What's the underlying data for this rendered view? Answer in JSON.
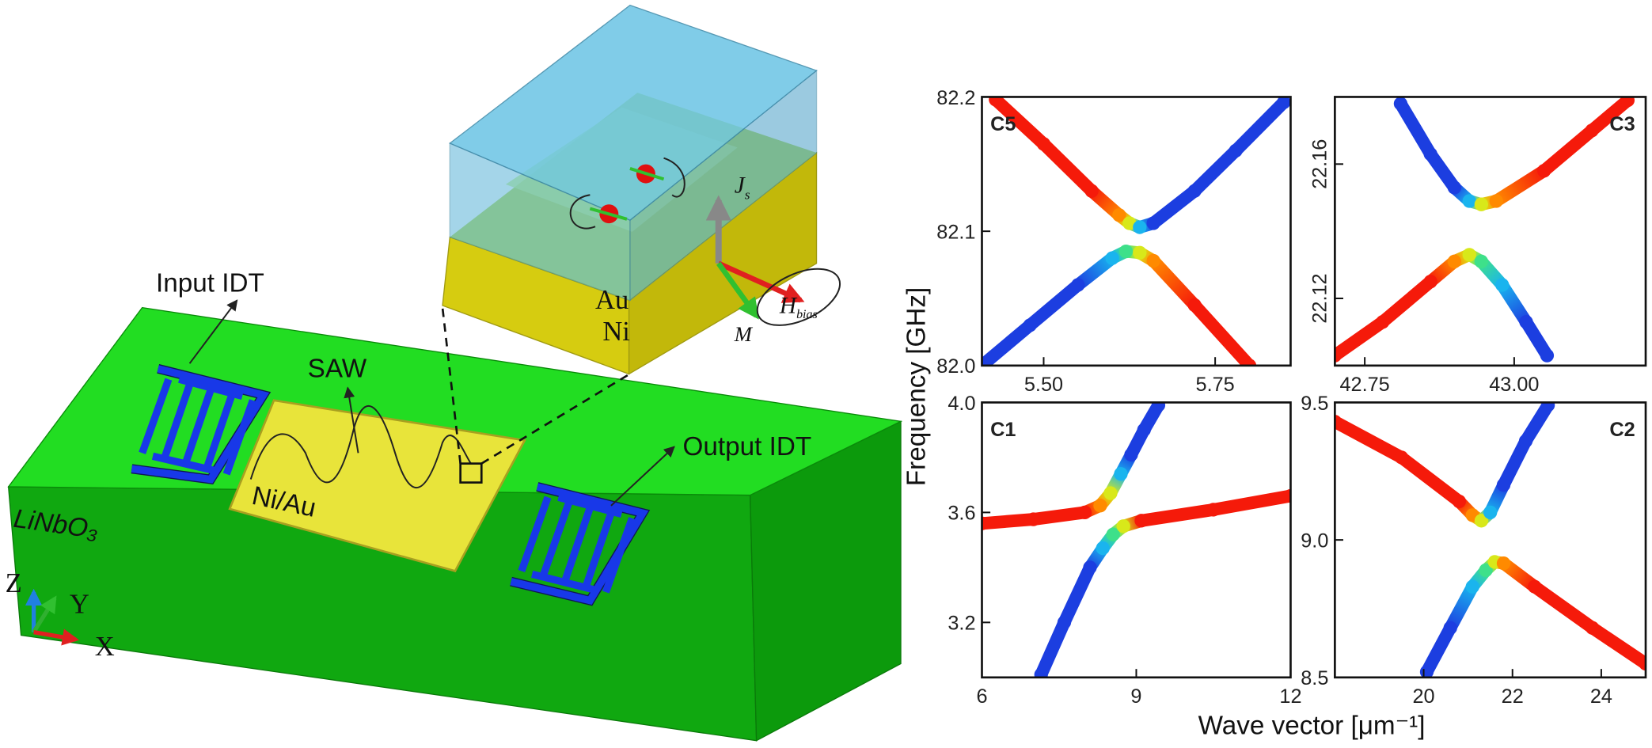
{
  "schematic": {
    "input_idt": "Input IDT",
    "output_idt": "Output IDT",
    "saw": "SAW",
    "film": "Ni/Au",
    "substrate": "LiNbO₃",
    "au": "Au",
    "ni": "Ni",
    "spin_current": "J",
    "spin_current_sub": "s",
    "field": "H",
    "field_sub": "bias",
    "magnetization": "M",
    "axis_z": "Z",
    "axis_y": "Y",
    "axis_x": "X"
  },
  "axes_labels": {
    "x": "Wave vector [μm⁻¹]",
    "y": "Frequency [GHz]"
  },
  "chart_data": [
    {
      "type": "scatter",
      "label": "C5",
      "label_corner": "upper left",
      "xlim": [
        5.41,
        5.86
      ],
      "xticks": [
        {
          "value": 5.5,
          "label": "5.50"
        },
        5.75
      ],
      "ylim": [
        82,
        82.2
      ],
      "yticks": [
        {
          "value": 82,
          "label": "82.0"
        },
        82.1,
        82.2
      ],
      "series": [
        {
          "x": [
            5.43,
            5.5,
            5.57,
            5.61,
            5.625,
            5.64,
            5.66,
            5.72,
            5.78,
            5.85
          ],
          "values": [
            82.198,
            82.165,
            82.13,
            82.112,
            82.106,
            82.103,
            82.106,
            82.13,
            82.16,
            82.196
          ],
          "colors": [
            "#f51a0a",
            "#f51a0a",
            "#f51a0a",
            "#ff8a00",
            "#d8e81a",
            "#1ab4ee",
            "#1c3ee0",
            "#1c3ee0",
            "#1c3ee0",
            "#1c3ee0"
          ]
        },
        {
          "x": [
            5.41,
            5.48,
            5.55,
            5.6,
            5.62,
            5.64,
            5.66,
            5.72,
            5.8
          ],
          "values": [
            82,
            82.03,
            82.06,
            82.08,
            82.085,
            82.084,
            82.078,
            82.045,
            82
          ],
          "colors": [
            "#1c3ee0",
            "#1c3ee0",
            "#1c3ee0",
            "#1ab4ee",
            "#3ee08a",
            "#d8e81a",
            "#ff8a00",
            "#f51a0a",
            "#f51a0a"
          ]
        }
      ]
    },
    {
      "type": "scatter",
      "label": "C3",
      "label_corner": "upper right",
      "y_tick_labels_rotated": true,
      "xlim": [
        42.7,
        43.22
      ],
      "xticks": [
        42.75,
        {
          "value": 43,
          "label": "43.00"
        }
      ],
      "ylim": [
        22.1,
        22.18
      ],
      "yticks": [
        22.12,
        22.16
      ],
      "series": [
        {
          "x": [
            42.81,
            42.86,
            42.9,
            42.925,
            42.945,
            42.97,
            43.05,
            43.13,
            43.19
          ],
          "values": [
            22.178,
            22.163,
            22.153,
            22.149,
            22.148,
            22.149,
            22.158,
            22.17,
            22.179
          ],
          "colors": [
            "#1c3ee0",
            "#1c3ee0",
            "#1c3ee0",
            "#1ab4ee",
            "#d8e81a",
            "#ff8a00",
            "#f51a0a",
            "#f51a0a",
            "#f51a0a"
          ]
        },
        {
          "x": [
            42.7,
            42.78,
            42.86,
            42.9,
            42.925,
            42.945,
            42.98,
            43.02,
            43.055
          ],
          "values": [
            22.103,
            22.113,
            22.125,
            22.131,
            22.133,
            22.131,
            22.124,
            22.113,
            22.103
          ],
          "colors": [
            "#f51a0a",
            "#f51a0a",
            "#f51a0a",
            "#ff8a00",
            "#d8e81a",
            "#3ee08a",
            "#1ab4ee",
            "#1c3ee0",
            "#1c3ee0"
          ]
        }
      ]
    },
    {
      "type": "scatter",
      "label": "C1",
      "label_corner": "upper left",
      "xlim": [
        6,
        12
      ],
      "xticks": [
        6,
        9,
        12
      ],
      "ylim": [
        3,
        4
      ],
      "yticks": [
        3.2,
        3.6,
        {
          "value": 4,
          "label": "4.0"
        }
      ],
      "series": [
        {
          "x": [
            6,
            7,
            8,
            8.3,
            8.5,
            8.7,
            8.9,
            9.15,
            9.43
          ],
          "values": [
            3.56,
            3.575,
            3.6,
            3.625,
            3.67,
            3.74,
            3.81,
            3.9,
            3.99
          ],
          "colors": [
            "#f51a0a",
            "#f51a0a",
            "#f51a0a",
            "#ff8a00",
            "#d8e81a",
            "#1ab4ee",
            "#1c3ee0",
            "#1c3ee0",
            "#1c3ee0"
          ]
        },
        {
          "x": [
            7.15,
            7.6,
            8.1,
            8.35,
            8.55,
            8.75,
            9.1,
            10.5,
            12
          ],
          "values": [
            3.01,
            3.2,
            3.4,
            3.47,
            3.52,
            3.55,
            3.57,
            3.61,
            3.66
          ],
          "colors": [
            "#1c3ee0",
            "#1c3ee0",
            "#1c3ee0",
            "#1ab4ee",
            "#3ee08a",
            "#d8e81a",
            "#f51a0a",
            "#f51a0a",
            "#f51a0a"
          ]
        }
      ]
    },
    {
      "type": "scatter",
      "label": "C2",
      "label_corner": "upper right",
      "xlim": [
        18,
        25
      ],
      "xticks": [
        20,
        22,
        24
      ],
      "ylim": [
        8.5,
        9.5
      ],
      "yticks": [
        8.5,
        {
          "value": 9,
          "label": "9.0"
        },
        9.5
      ],
      "series": [
        {
          "x": [
            18,
            19.5,
            20.8,
            21.1,
            21.3,
            21.5,
            21.8,
            22.3,
            22.8
          ],
          "values": [
            9.43,
            9.3,
            9.14,
            9.09,
            9.07,
            9.1,
            9.2,
            9.36,
            9.49
          ],
          "colors": [
            "#f51a0a",
            "#f51a0a",
            "#f51a0a",
            "#ff8a00",
            "#d8e81a",
            "#1ab4ee",
            "#1c3ee0",
            "#1c3ee0",
            "#1c3ee0"
          ]
        },
        {
          "x": [
            20.07,
            20.6,
            21.1,
            21.4,
            21.6,
            21.8,
            22.5,
            23.8,
            25
          ],
          "values": [
            8.52,
            8.68,
            8.83,
            8.89,
            8.92,
            8.915,
            8.83,
            8.68,
            8.55
          ],
          "colors": [
            "#1c3ee0",
            "#1c3ee0",
            "#1ab4ee",
            "#3ee08a",
            "#d8e81a",
            "#ff8a00",
            "#f51a0a",
            "#f51a0a",
            "#f51a0a"
          ]
        }
      ]
    }
  ]
}
